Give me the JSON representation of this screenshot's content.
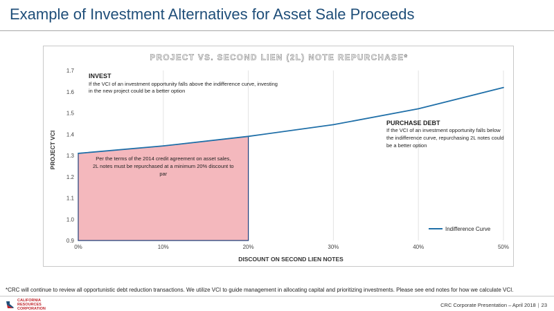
{
  "slide": {
    "title": "Example of Investment Alternatives for Asset Sale Proceeds",
    "footnote": "*CRC will continue to review all opportunistic debt reduction transactions. We utilize VCI to guide management in allocating capital and prioritizing investments. Please see end notes for how we calculate VCI.",
    "footer": {
      "presentation": "CRC Corporate Presentation – April 2018",
      "separator": "|",
      "page_number": "23"
    },
    "logo": {
      "line1": "CALIFORNIA",
      "line2": "RESOURCES",
      "line3": "CORPORATION"
    }
  },
  "chart_data": {
    "type": "line",
    "title": "PROJECT VS. SECOND LIEN (2L) NOTE REPURCHASE*",
    "xlabel": "DISCOUNT ON SECOND LIEN NOTES",
    "ylabel": "PROJECT VCI",
    "x": [
      0,
      10,
      20,
      30,
      40,
      50
    ],
    "x_tick_labels": [
      "0%",
      "10%",
      "20%",
      "30%",
      "40%",
      "50%"
    ],
    "y_ticks": [
      0.9,
      1.0,
      1.1,
      1.2,
      1.3,
      1.4,
      1.5,
      1.6,
      1.7
    ],
    "y_tick_labels": [
      "0.9",
      "1.0",
      "1.1",
      "1.2",
      "1.3",
      "1.4",
      "1.5",
      "1.6",
      "1.7"
    ],
    "xlim": [
      0,
      50
    ],
    "ylim": [
      0.9,
      1.7
    ],
    "grid": "vertical",
    "series": [
      {
        "name": "Indifference Curve",
        "color": "#1f6fa8",
        "x": [
          0,
          10,
          20,
          30,
          40,
          50
        ],
        "values": [
          1.31,
          1.345,
          1.39,
          1.445,
          1.52,
          1.62
        ]
      }
    ],
    "shaded_region": {
      "x_start": 0,
      "x_end": 20,
      "y_base": 0.9,
      "fill": "#f4b8bd",
      "stroke": "#1f3f7a",
      "text": "Per the terms of the 2014 credit agreement on asset sales, 2L notes must be repurchased at a minimum 20% discount to par"
    },
    "annotations": {
      "invest": {
        "heading": "INVEST",
        "text": "If the VCI of an investment opportunity falls above the indifference curve, investing in the new project could be a better option"
      },
      "purchase_debt": {
        "heading": "PURCHASE DEBT",
        "text": "If the VCI of an investment opportunity falls below the indifference curve, repurchasing 2L notes could be a better option"
      }
    },
    "legend": {
      "position": "bottom-right",
      "label": "Indifference Curve"
    }
  }
}
